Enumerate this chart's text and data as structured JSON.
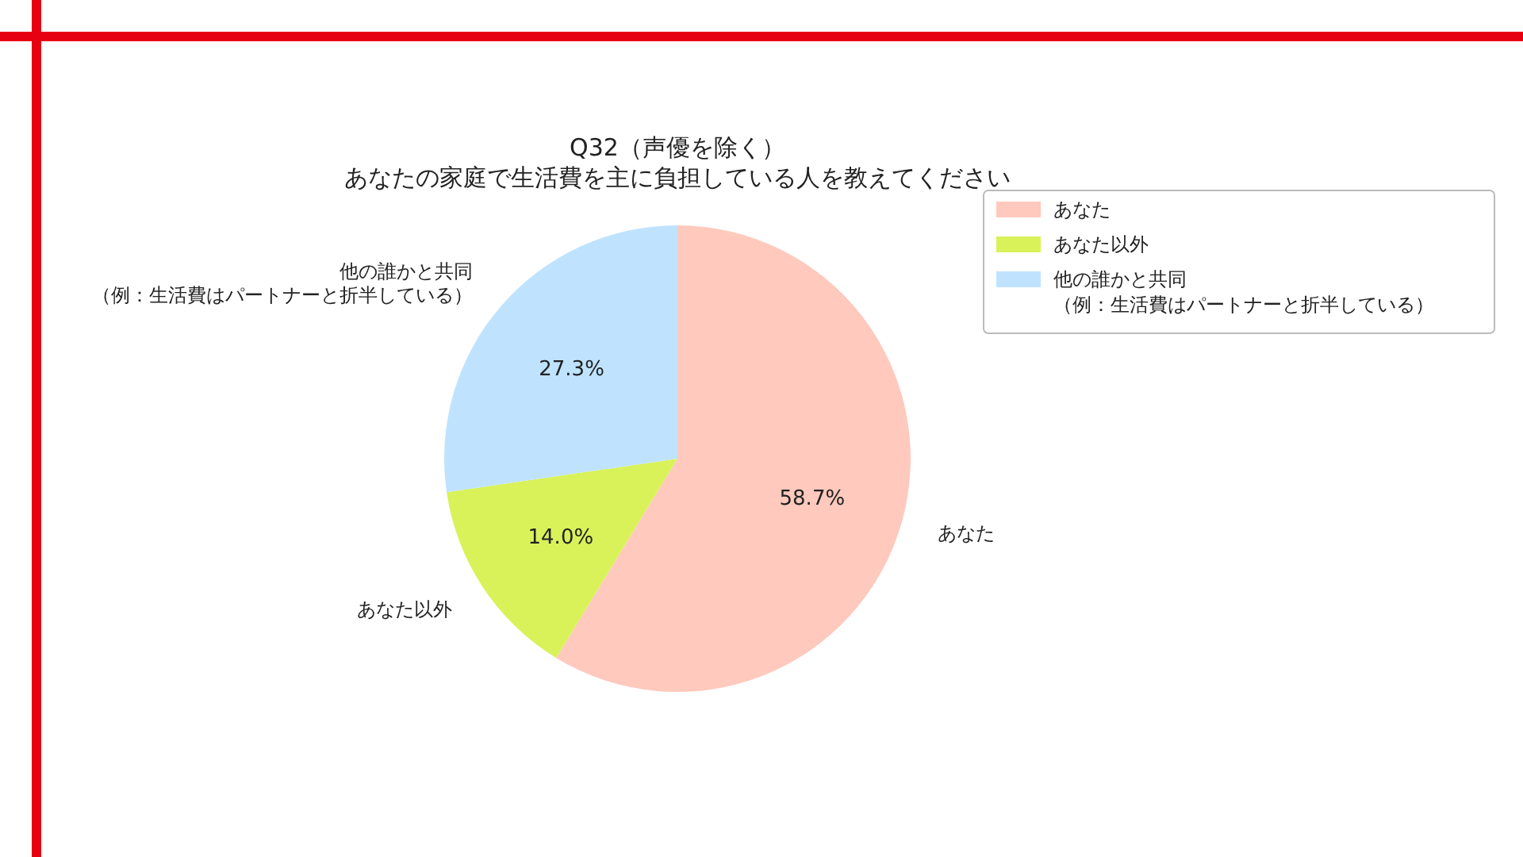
{
  "chart_data": {
    "type": "pie",
    "title": "Q32（声優を除く）",
    "subtitle": "あなたの家庭で生活費を主に負担している人を教えてください",
    "categories": [
      "あなた",
      "あなた以外",
      "他の誰かと共同（例：生活費はパートナーと折半している）"
    ],
    "values": [
      58.7,
      14.0,
      27.3
    ],
    "value_labels": [
      "58.7%",
      "14.0%",
      "27.3%"
    ],
    "colors": [
      "#ffc9bd",
      "#d9f25a",
      "#bfe3ff"
    ],
    "legend": "top right"
  }
}
